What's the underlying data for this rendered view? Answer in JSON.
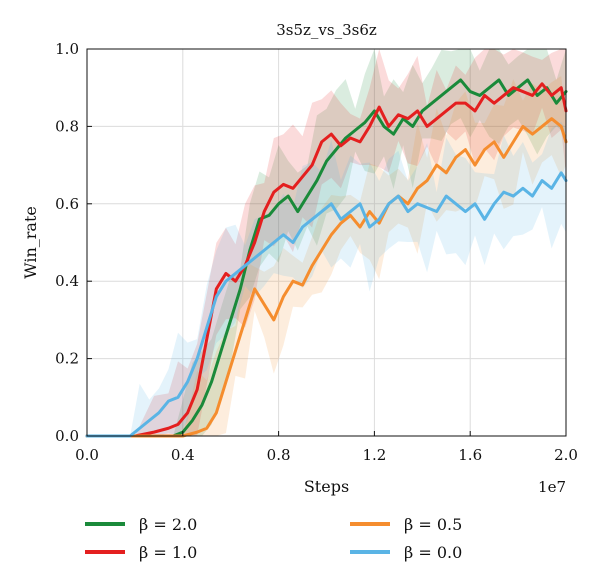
{
  "chart_data": {
    "type": "line",
    "title": "3s5z_vs_3s6z",
    "xlabel": "Steps",
    "ylabel": "Win_rate",
    "x_offset_text": "1e7",
    "xlim": [
      0.0,
      2.0
    ],
    "ylim": [
      0.0,
      1.0
    ],
    "xticks": [
      "0.0",
      "0.4",
      "0.8",
      "1.2",
      "1.6",
      "2.0"
    ],
    "yticks": [
      "0.0",
      "0.2",
      "0.4",
      "0.6",
      "0.8",
      "1.0"
    ],
    "grid": true,
    "legend_position": "bottom",
    "series": [
      {
        "name": "β = 2.0",
        "color": "#1a8a3a",
        "x": [
          0.0,
          0.2,
          0.3,
          0.36,
          0.4,
          0.44,
          0.48,
          0.52,
          0.56,
          0.6,
          0.64,
          0.68,
          0.72,
          0.76,
          0.8,
          0.84,
          0.88,
          0.92,
          0.96,
          1.0,
          1.04,
          1.08,
          1.12,
          1.16,
          1.2,
          1.24,
          1.28,
          1.32,
          1.36,
          1.4,
          1.44,
          1.48,
          1.52,
          1.56,
          1.6,
          1.64,
          1.68,
          1.72,
          1.76,
          1.8,
          1.84,
          1.88,
          1.92,
          1.96,
          2.0
        ],
        "values": [
          0.0,
          0.0,
          0.0,
          0.0,
          0.01,
          0.04,
          0.08,
          0.14,
          0.22,
          0.3,
          0.38,
          0.48,
          0.56,
          0.57,
          0.6,
          0.62,
          0.58,
          0.62,
          0.66,
          0.71,
          0.74,
          0.77,
          0.79,
          0.81,
          0.84,
          0.8,
          0.78,
          0.82,
          0.8,
          0.84,
          0.86,
          0.88,
          0.9,
          0.92,
          0.89,
          0.88,
          0.9,
          0.92,
          0.88,
          0.9,
          0.92,
          0.88,
          0.9,
          0.86,
          0.89
        ]
      },
      {
        "name": "β = 1.0",
        "color": "#e41f1f",
        "x": [
          0.0,
          0.2,
          0.28,
          0.34,
          0.38,
          0.42,
          0.46,
          0.5,
          0.54,
          0.58,
          0.62,
          0.66,
          0.7,
          0.74,
          0.78,
          0.82,
          0.86,
          0.9,
          0.94,
          0.98,
          1.02,
          1.06,
          1.1,
          1.14,
          1.18,
          1.22,
          1.26,
          1.3,
          1.34,
          1.38,
          1.42,
          1.46,
          1.5,
          1.54,
          1.58,
          1.62,
          1.66,
          1.7,
          1.74,
          1.78,
          1.82,
          1.86,
          1.9,
          1.94,
          1.98,
          2.0
        ],
        "values": [
          0.0,
          0.0,
          0.01,
          0.02,
          0.03,
          0.06,
          0.12,
          0.25,
          0.38,
          0.42,
          0.4,
          0.44,
          0.5,
          0.58,
          0.63,
          0.65,
          0.64,
          0.67,
          0.7,
          0.76,
          0.78,
          0.75,
          0.77,
          0.76,
          0.8,
          0.85,
          0.8,
          0.83,
          0.82,
          0.84,
          0.8,
          0.82,
          0.84,
          0.86,
          0.86,
          0.84,
          0.88,
          0.86,
          0.88,
          0.9,
          0.89,
          0.88,
          0.91,
          0.88,
          0.9,
          0.84
        ]
      },
      {
        "name": "β = 0.5",
        "color": "#f58d2e",
        "x": [
          0.0,
          0.3,
          0.4,
          0.46,
          0.5,
          0.54,
          0.58,
          0.62,
          0.66,
          0.7,
          0.74,
          0.78,
          0.82,
          0.86,
          0.9,
          0.94,
          0.98,
          1.02,
          1.06,
          1.1,
          1.14,
          1.18,
          1.22,
          1.26,
          1.3,
          1.34,
          1.38,
          1.42,
          1.46,
          1.5,
          1.54,
          1.58,
          1.62,
          1.66,
          1.7,
          1.74,
          1.78,
          1.82,
          1.86,
          1.9,
          1.94,
          1.98,
          2.0
        ],
        "values": [
          0.0,
          0.0,
          0.0,
          0.01,
          0.02,
          0.06,
          0.14,
          0.22,
          0.3,
          0.38,
          0.34,
          0.3,
          0.36,
          0.4,
          0.39,
          0.44,
          0.48,
          0.52,
          0.55,
          0.57,
          0.54,
          0.58,
          0.55,
          0.6,
          0.62,
          0.6,
          0.64,
          0.66,
          0.7,
          0.68,
          0.72,
          0.74,
          0.7,
          0.74,
          0.76,
          0.72,
          0.76,
          0.8,
          0.78,
          0.8,
          0.82,
          0.8,
          0.76
        ]
      },
      {
        "name": "β = 0.0",
        "color": "#5ab4e5",
        "x": [
          0.0,
          0.18,
          0.22,
          0.26,
          0.3,
          0.34,
          0.38,
          0.42,
          0.46,
          0.5,
          0.54,
          0.58,
          0.62,
          0.66,
          0.7,
          0.74,
          0.78,
          0.82,
          0.86,
          0.9,
          0.94,
          0.98,
          1.02,
          1.06,
          1.1,
          1.14,
          1.18,
          1.22,
          1.26,
          1.3,
          1.34,
          1.38,
          1.42,
          1.46,
          1.5,
          1.54,
          1.58,
          1.62,
          1.66,
          1.7,
          1.74,
          1.78,
          1.82,
          1.86,
          1.9,
          1.94,
          1.98,
          2.0
        ],
        "values": [
          0.0,
          0.0,
          0.02,
          0.04,
          0.06,
          0.09,
          0.1,
          0.14,
          0.2,
          0.28,
          0.36,
          0.4,
          0.42,
          0.44,
          0.46,
          0.48,
          0.5,
          0.52,
          0.5,
          0.54,
          0.56,
          0.58,
          0.6,
          0.56,
          0.58,
          0.6,
          0.54,
          0.56,
          0.6,
          0.62,
          0.58,
          0.6,
          0.59,
          0.58,
          0.62,
          0.6,
          0.58,
          0.6,
          0.56,
          0.6,
          0.63,
          0.62,
          0.64,
          0.62,
          0.66,
          0.64,
          0.68,
          0.66
        ]
      }
    ]
  }
}
